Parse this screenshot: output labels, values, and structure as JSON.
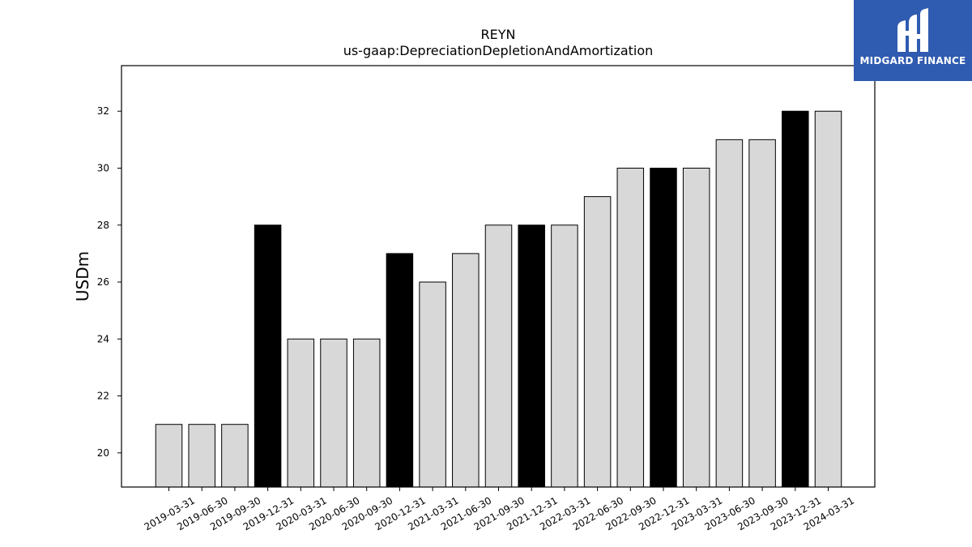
{
  "logo": {
    "text": "MIDGARD FINANCE"
  },
  "chart_data": {
    "type": "bar",
    "title": "REYN",
    "subtitle": "us-gaap:DepreciationDepletionAndAmortization",
    "xlabel": "",
    "ylabel": "USDm",
    "ylim": [
      18.8,
      33.6
    ],
    "yticks": [
      20,
      22,
      24,
      26,
      28,
      30,
      32
    ],
    "categories": [
      "2019-03-31",
      "2019-06-30",
      "2019-09-30",
      "2019-12-31",
      "2020-03-31",
      "2020-06-30",
      "2020-09-30",
      "2020-12-31",
      "2021-03-31",
      "2021-06-30",
      "2021-09-30",
      "2021-12-31",
      "2022-03-31",
      "2022-06-30",
      "2022-09-30",
      "2022-12-31",
      "2023-03-31",
      "2023-06-30",
      "2023-09-30",
      "2023-12-31",
      "2024-03-31"
    ],
    "values": [
      21,
      21,
      21,
      28,
      24,
      24,
      24,
      27,
      26,
      27,
      28,
      28,
      28,
      29,
      30,
      30,
      30,
      31,
      31,
      32,
      32
    ],
    "colors": {
      "quarter": "#d8d8d8",
      "year_end": "#000000",
      "edge": "#000000"
    },
    "highlighted": [
      "2019-12-31",
      "2020-12-31",
      "2021-12-31",
      "2022-12-31",
      "2023-12-31"
    ],
    "grid": false,
    "legend": "none"
  }
}
